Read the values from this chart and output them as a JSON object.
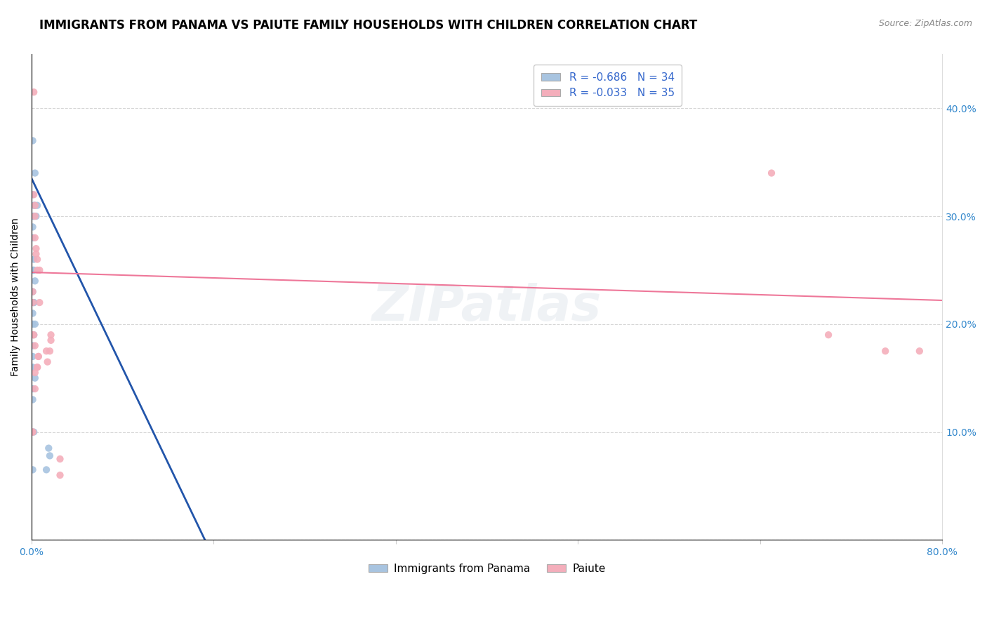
{
  "title": "IMMIGRANTS FROM PANAMA VS PAIUTE FAMILY HOUSEHOLDS WITH CHILDREN CORRELATION CHART",
  "source": "Source: ZipAtlas.com",
  "ylabel": "Family Households with Children",
  "legend_entry1": "R = -0.686   N = 34",
  "legend_entry2": "R = -0.033   N = 35",
  "legend_label1": "Immigrants from Panama",
  "legend_label2": "Paiute",
  "blue_color": "#A8C4E0",
  "pink_color": "#F4AEBB",
  "blue_line_color": "#2255AA",
  "pink_line_color": "#EE7799",
  "background_color": "#FFFFFF",
  "blue_scatter": {
    "x": [
      0.001,
      0.003,
      0.002,
      0.001,
      0.002,
      0.003,
      0.004,
      0.005,
      0.001,
      0.002,
      0.001,
      0.001,
      0.002,
      0.001,
      0.003,
      0.001,
      0.002,
      0.002,
      0.001,
      0.003,
      0.001,
      0.002,
      0.001,
      0.001,
      0.001,
      0.003,
      0.002,
      0.015,
      0.016,
      0.001,
      0.001,
      0.013,
      0.001,
      0.002
    ],
    "y": [
      0.37,
      0.34,
      0.3,
      0.32,
      0.31,
      0.31,
      0.3,
      0.31,
      0.3,
      0.3,
      0.29,
      0.28,
      0.26,
      0.25,
      0.24,
      0.23,
      0.22,
      0.22,
      0.21,
      0.2,
      0.2,
      0.19,
      0.18,
      0.17,
      0.16,
      0.15,
      0.1,
      0.085,
      0.078,
      0.14,
      0.13,
      0.065,
      0.065,
      0.25
    ]
  },
  "pink_scatter": {
    "x": [
      0.002,
      0.002,
      0.003,
      0.003,
      0.003,
      0.004,
      0.004,
      0.005,
      0.005,
      0.007,
      0.001,
      0.001,
      0.001,
      0.002,
      0.003,
      0.006,
      0.006,
      0.005,
      0.005,
      0.003,
      0.003,
      0.007,
      0.017,
      0.017,
      0.016,
      0.013,
      0.014,
      0.025,
      0.025,
      0.001,
      0.001,
      0.65,
      0.7,
      0.75,
      0.78
    ],
    "y": [
      0.415,
      0.32,
      0.31,
      0.3,
      0.28,
      0.27,
      0.265,
      0.26,
      0.25,
      0.22,
      0.23,
      0.22,
      0.19,
      0.19,
      0.18,
      0.17,
      0.17,
      0.16,
      0.16,
      0.155,
      0.14,
      0.25,
      0.19,
      0.185,
      0.175,
      0.175,
      0.165,
      0.075,
      0.06,
      0.1,
      0.1,
      0.34,
      0.19,
      0.175,
      0.175
    ]
  },
  "blue_trend": {
    "x": [
      0.0,
      0.175
    ],
    "y": [
      0.335,
      -0.05
    ]
  },
  "pink_trend": {
    "x": [
      0.0,
      0.8
    ],
    "y": [
      0.248,
      0.222
    ]
  },
  "xlim": [
    0.0,
    0.8
  ],
  "ylim": [
    0.0,
    0.45
  ],
  "xtick_positions": [
    0.0,
    0.16,
    0.32,
    0.48,
    0.64,
    0.8
  ],
  "ytick_positions": [
    0.0,
    0.1,
    0.2,
    0.3,
    0.4
  ],
  "ytick_labels": [
    "",
    "10.0%",
    "20.0%",
    "30.0%",
    "40.0%"
  ],
  "title_fontsize": 12,
  "axis_label_fontsize": 10,
  "tick_fontsize": 10,
  "scatter_size": 55,
  "watermark": "ZIPatlas"
}
